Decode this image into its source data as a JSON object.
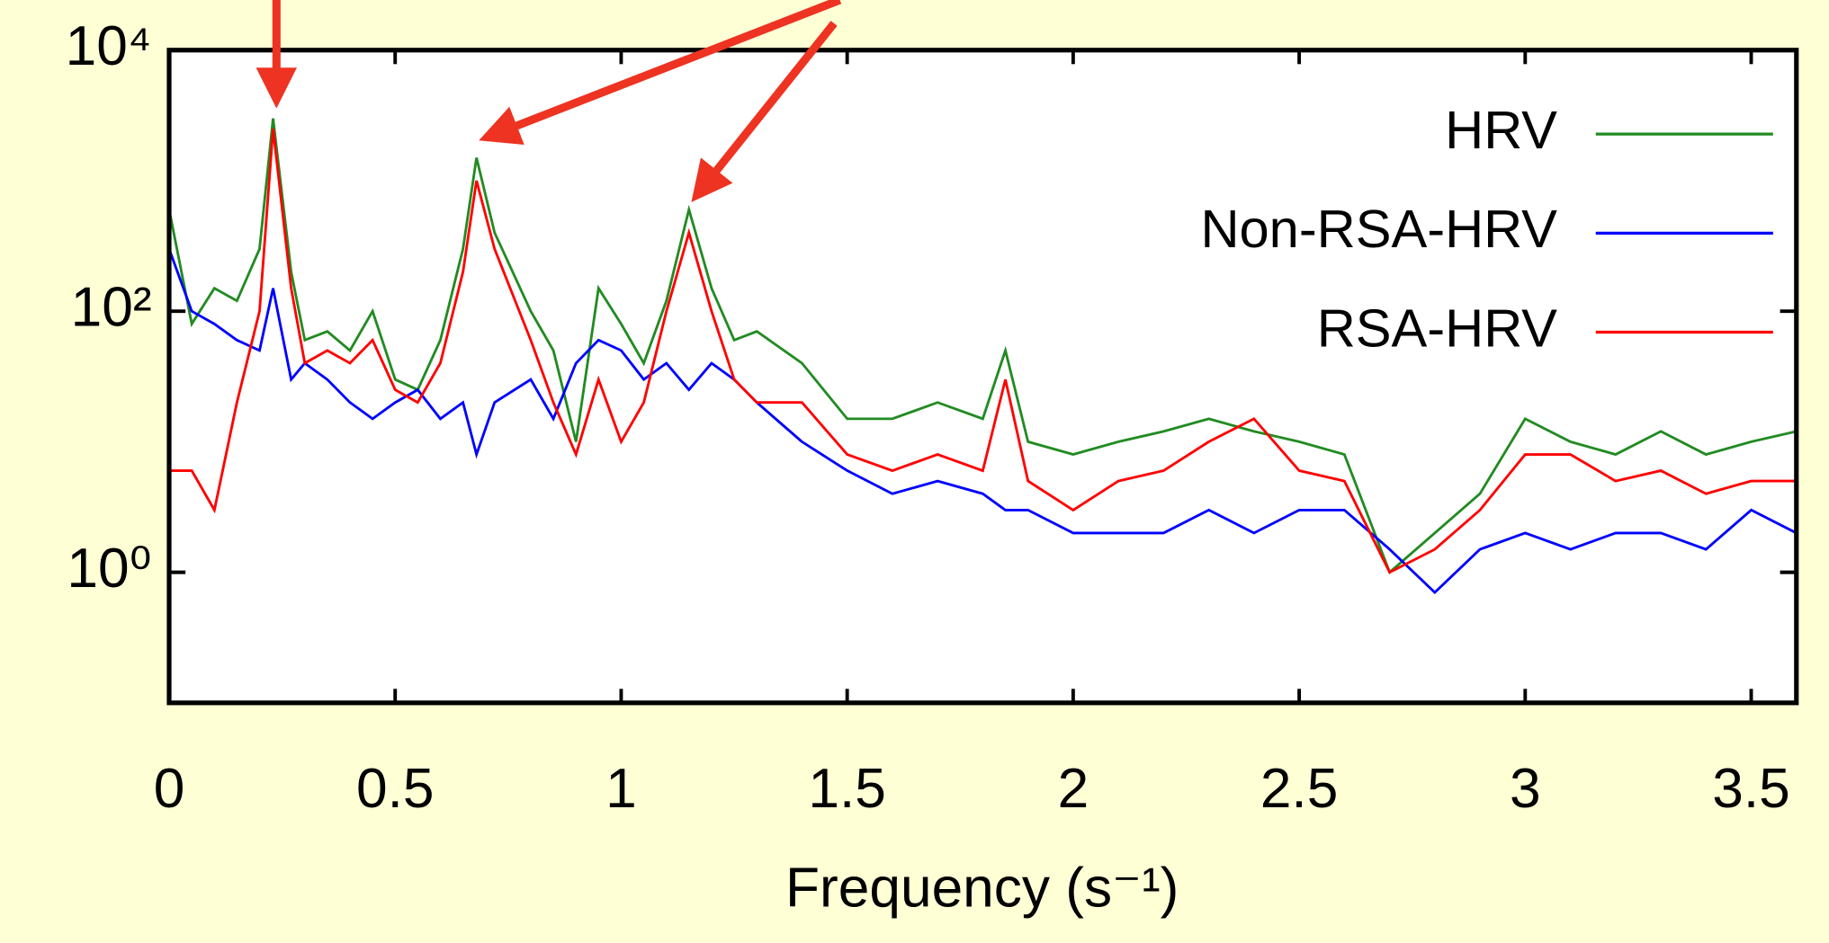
{
  "chart_data": {
    "type": "line",
    "x_label": "Frequency (s⁻¹)",
    "x": [
      0,
      0.05,
      0.1,
      0.15,
      0.2,
      0.23,
      0.27,
      0.3,
      0.35,
      0.4,
      0.45,
      0.5,
      0.55,
      0.6,
      0.65,
      0.68,
      0.72,
      0.8,
      0.85,
      0.9,
      0.95,
      1.0,
      1.05,
      1.1,
      1.15,
      1.2,
      1.25,
      1.3,
      1.4,
      1.5,
      1.6,
      1.7,
      1.8,
      1.85,
      1.9,
      2.0,
      2.1,
      2.2,
      2.3,
      2.4,
      2.5,
      2.6,
      2.7,
      2.8,
      2.9,
      3.0,
      3.1,
      3.2,
      3.3,
      3.4,
      3.5,
      3.6
    ],
    "series": [
      {
        "name": "HRV",
        "color": "#228b22",
        "values": [
          600,
          80,
          150,
          120,
          300,
          3000,
          200,
          60,
          70,
          50,
          100,
          30,
          25,
          60,
          300,
          1500,
          400,
          100,
          50,
          10,
          150,
          80,
          40,
          120,
          600,
          150,
          60,
          70,
          40,
          15,
          15,
          20,
          15,
          50,
          10,
          8,
          10,
          12,
          15,
          12,
          10,
          8,
          1,
          2,
          4,
          15,
          10,
          8,
          12,
          8,
          10,
          12
        ]
      },
      {
        "name": "Non-RSA-HRV",
        "color": "#0000ff",
        "values": [
          300,
          100,
          80,
          60,
          50,
          150,
          30,
          40,
          30,
          20,
          15,
          20,
          25,
          15,
          20,
          8,
          20,
          30,
          15,
          40,
          60,
          50,
          30,
          40,
          25,
          40,
          30,
          20,
          10,
          6,
          4,
          5,
          4,
          3,
          3,
          2,
          2,
          2,
          3,
          2,
          3,
          3,
          1.5,
          0.7,
          1.5,
          2,
          1.5,
          2,
          2,
          1.5,
          3,
          2
        ]
      },
      {
        "name": "RSA-HRV",
        "color": "#ff0000",
        "values": [
          6,
          6,
          3,
          20,
          100,
          2500,
          150,
          40,
          50,
          40,
          60,
          25,
          20,
          40,
          200,
          1000,
          300,
          60,
          20,
          8,
          30,
          10,
          20,
          100,
          400,
          100,
          30,
          20,
          20,
          8,
          6,
          8,
          6,
          30,
          5,
          3,
          5,
          6,
          10,
          15,
          6,
          5,
          1,
          1.5,
          3,
          8,
          8,
          5,
          6,
          4,
          5,
          5
        ]
      }
    ],
    "xlim": [
      0,
      3.6
    ],
    "xticks": [
      0,
      0.5,
      1,
      1.5,
      2,
      2.5,
      3,
      3.5
    ],
    "ylim": [
      0.1,
      10000
    ],
    "y_scale": "log",
    "yticks": [
      {
        "value": 1,
        "label": "10⁰"
      },
      {
        "value": 100,
        "label": "10²"
      },
      {
        "value": 10000,
        "label": "10⁴"
      }
    ],
    "legend": "top-right"
  }
}
